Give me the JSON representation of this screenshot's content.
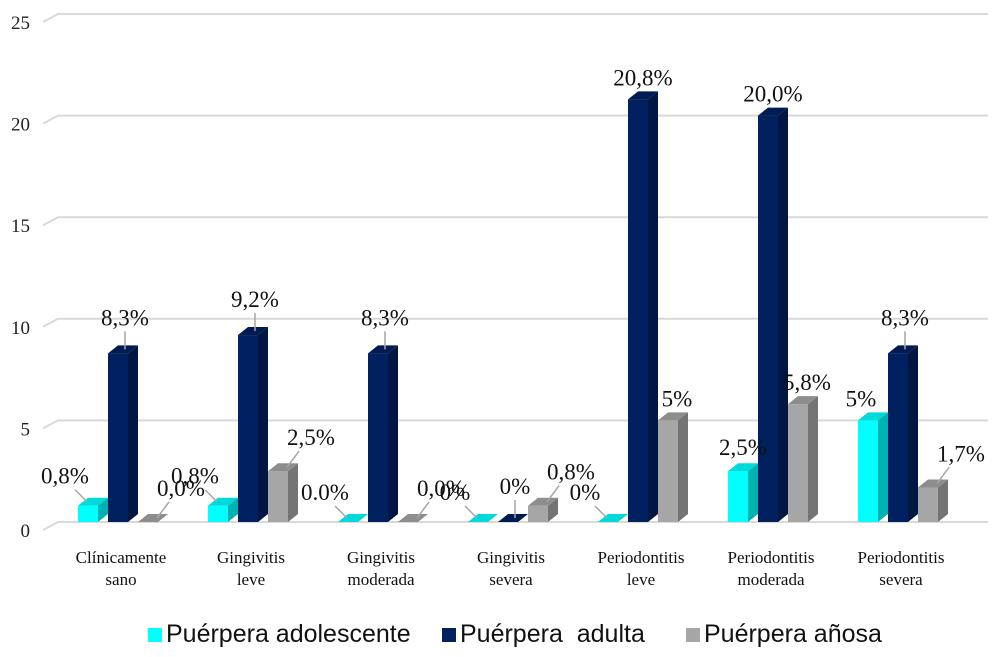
{
  "chart_data": {
    "type": "bar",
    "title": "",
    "xlabel": "",
    "ylabel": "",
    "ylim": [
      0,
      25
    ],
    "yticks": [
      0,
      5,
      10,
      15,
      20,
      25
    ],
    "grid": true,
    "legend_position": "bottom",
    "categories": [
      [
        "Clínicamente",
        "sano"
      ],
      [
        "Gingivitis",
        "leve"
      ],
      [
        "Gingivitis",
        "moderada"
      ],
      [
        "Gingivitis",
        "severa"
      ],
      [
        "Periodontitis",
        "leve"
      ],
      [
        "Periodontitis",
        "moderada"
      ],
      [
        "Periodontitis",
        "severa"
      ]
    ],
    "series": [
      {
        "name": "Puérpera adolescente",
        "color": "#00FFFF",
        "values": [
          0.8,
          0.8,
          0.0,
          0.0,
          0.0,
          2.5,
          5.0
        ],
        "labels": [
          "0,8%",
          "0,8%",
          "0.0%",
          "0%",
          "0%",
          "2,5%",
          "5%"
        ]
      },
      {
        "name": "Puérpera  adulta",
        "color": "#002060",
        "values": [
          8.3,
          9.2,
          8.3,
          0.0,
          20.8,
          20.0,
          8.3
        ],
        "labels": [
          "8,3%",
          "9,2%",
          "8,3%",
          "0%",
          "20,8%",
          "20,0%",
          "8,3%"
        ]
      },
      {
        "name": "Puérpera añosa",
        "color": "#A6A6A6",
        "values": [
          0.0,
          2.5,
          0.0,
          0.8,
          5.0,
          5.8,
          1.7
        ],
        "labels": [
          "0,0%",
          "2,5%",
          "0,0%",
          "0,8%",
          "5%",
          "5,8%",
          "1,7%"
        ]
      }
    ]
  }
}
